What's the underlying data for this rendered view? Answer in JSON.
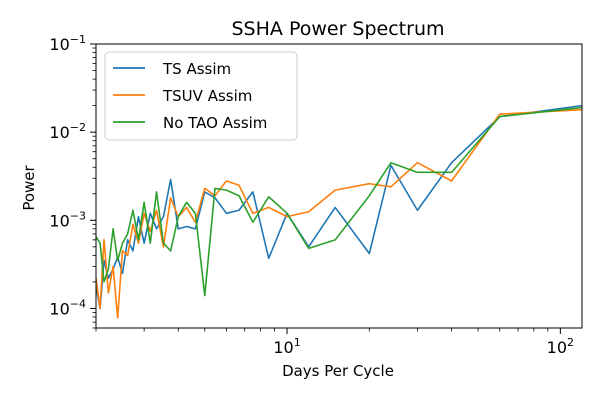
{
  "chart_data": {
    "type": "line",
    "title": "SSHA Power Spectrum",
    "xlabel": "Days Per Cycle",
    "ylabel": "Power",
    "xscale": "log",
    "yscale": "log",
    "xlim": [
      2.0,
      120
    ],
    "ylim": [
      6e-05,
      0.1
    ],
    "x_ticks": [
      {
        "value": 10,
        "base": "10",
        "exp": "1"
      },
      {
        "value": 100,
        "base": "10",
        "exp": "2"
      }
    ],
    "y_ticks": [
      {
        "value": 0.0001,
        "base": "10",
        "exp": "−4"
      },
      {
        "value": 0.001,
        "base": "10",
        "exp": "−3"
      },
      {
        "value": 0.01,
        "base": "10",
        "exp": "−2"
      },
      {
        "value": 0.1,
        "base": "10",
        "exp": "−1"
      }
    ],
    "grid": false,
    "legend_position": "upper-left",
    "series": [
      {
        "name": "TS Assim",
        "color": "#1f77b4",
        "points": [
          [
            2.0,
            0.00018
          ],
          [
            2.07,
            0.0001
          ],
          [
            2.14,
            0.00035
          ],
          [
            2.22,
            0.00022
          ],
          [
            2.31,
            0.00028
          ],
          [
            2.4,
            0.00038
          ],
          [
            2.5,
            0.00025
          ],
          [
            2.61,
            0.0006
          ],
          [
            2.73,
            0.00045
          ],
          [
            2.86,
            0.0011
          ],
          [
            3.0,
            0.00055
          ],
          [
            3.16,
            0.0012
          ],
          [
            3.33,
            0.0008
          ],
          [
            3.53,
            0.0011
          ],
          [
            3.75,
            0.0029
          ],
          [
            4.0,
            0.0008
          ],
          [
            4.29,
            0.00085
          ],
          [
            4.62,
            0.0008
          ],
          [
            5.0,
            0.0021
          ],
          [
            5.45,
            0.0018
          ],
          [
            6.0,
            0.0012
          ],
          [
            6.67,
            0.0013
          ],
          [
            7.5,
            0.0021
          ],
          [
            8.57,
            0.00037
          ],
          [
            10.0,
            0.0012
          ],
          [
            12.0,
            0.0005
          ],
          [
            15.0,
            0.0014
          ],
          [
            20.0,
            0.00042
          ],
          [
            24.0,
            0.0042
          ],
          [
            30.0,
            0.0013
          ],
          [
            40.0,
            0.0045
          ],
          [
            60.0,
            0.015
          ],
          [
            120.0,
            0.02
          ]
        ]
      },
      {
        "name": "TSUV Assim",
        "color": "#ff7f0e",
        "points": [
          [
            2.0,
            0.00022
          ],
          [
            2.07,
            0.0001
          ],
          [
            2.14,
            0.0006
          ],
          [
            2.22,
            0.00015
          ],
          [
            2.31,
            0.0003
          ],
          [
            2.4,
            7.8e-05
          ],
          [
            2.5,
            0.00045
          ],
          [
            2.61,
            0.0004
          ],
          [
            2.73,
            0.0009
          ],
          [
            2.86,
            0.00055
          ],
          [
            3.0,
            0.0012
          ],
          [
            3.16,
            0.00075
          ],
          [
            3.33,
            0.0013
          ],
          [
            3.53,
            0.0005
          ],
          [
            3.75,
            0.0018
          ],
          [
            4.0,
            0.0011
          ],
          [
            4.29,
            0.0014
          ],
          [
            4.62,
            0.00095
          ],
          [
            5.0,
            0.0023
          ],
          [
            5.45,
            0.0019
          ],
          [
            6.0,
            0.0028
          ],
          [
            6.67,
            0.0025
          ],
          [
            7.5,
            0.0012
          ],
          [
            8.57,
            0.0014
          ],
          [
            10.0,
            0.0011
          ],
          [
            12.0,
            0.00125
          ],
          [
            15.0,
            0.0022
          ],
          [
            20.0,
            0.0026
          ],
          [
            24.0,
            0.0024
          ],
          [
            30.0,
            0.0045
          ],
          [
            40.0,
            0.0028
          ],
          [
            60.0,
            0.016
          ],
          [
            120.0,
            0.018
          ]
        ]
      },
      {
        "name": "No TAO Assim",
        "color": "#2ca02c",
        "points": [
          [
            2.0,
            0.00065
          ],
          [
            2.07,
            0.00055
          ],
          [
            2.14,
            0.0002
          ],
          [
            2.22,
            0.00028
          ],
          [
            2.31,
            0.0008
          ],
          [
            2.4,
            0.00035
          ],
          [
            2.5,
            0.00055
          ],
          [
            2.61,
            0.0007
          ],
          [
            2.73,
            0.0013
          ],
          [
            2.86,
            0.0006
          ],
          [
            3.0,
            0.0016
          ],
          [
            3.16,
            0.00055
          ],
          [
            3.33,
            0.0021
          ],
          [
            3.53,
            0.00055
          ],
          [
            3.75,
            0.00045
          ],
          [
            4.0,
            0.0011
          ],
          [
            4.29,
            0.0016
          ],
          [
            4.62,
            0.0012
          ],
          [
            5.0,
            0.00014
          ],
          [
            5.45,
            0.0023
          ],
          [
            6.0,
            0.0022
          ],
          [
            6.67,
            0.0019
          ],
          [
            7.5,
            0.00095
          ],
          [
            8.57,
            0.00185
          ],
          [
            10.0,
            0.0012
          ],
          [
            12.0,
            0.00048
          ],
          [
            15.0,
            0.0006
          ],
          [
            20.0,
            0.0019
          ],
          [
            24.0,
            0.0045
          ],
          [
            30.0,
            0.0035
          ],
          [
            40.0,
            0.0035
          ],
          [
            60.0,
            0.015
          ],
          [
            120.0,
            0.019
          ]
        ]
      }
    ]
  }
}
